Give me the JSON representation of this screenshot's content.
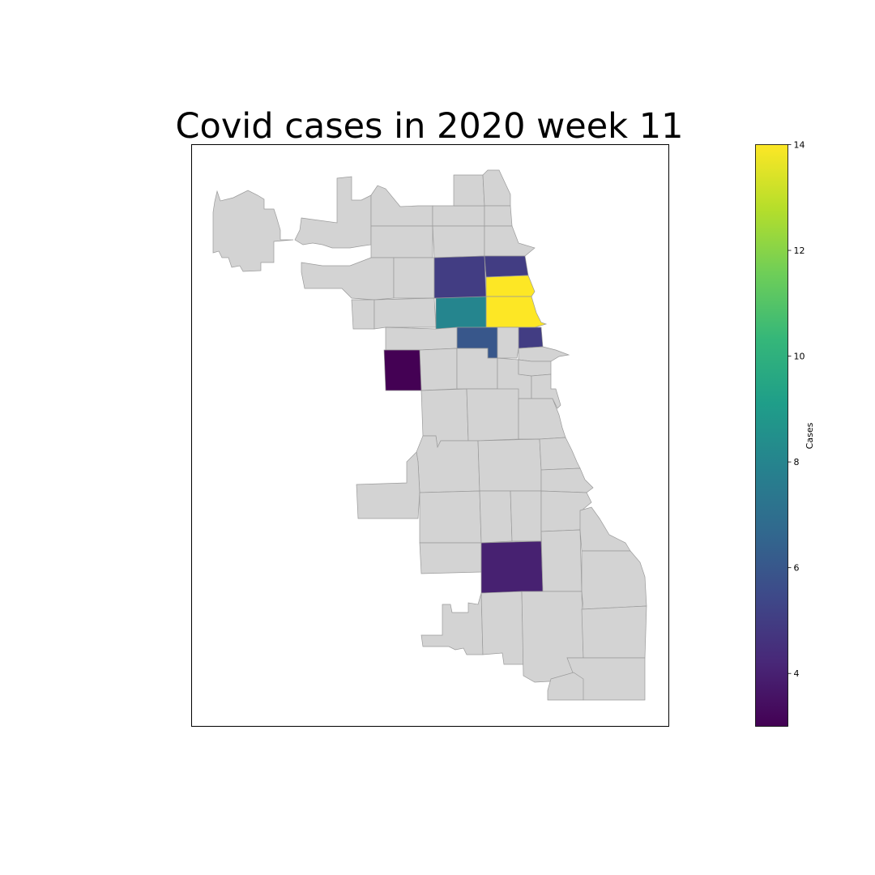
{
  "title": "Covid cases in 2020 week 11",
  "colorbar": {
    "label": "Cases",
    "min": 3,
    "max": 14,
    "ticks": [
      4,
      6,
      8,
      10,
      12,
      14
    ],
    "colormap": "viridis",
    "stops": [
      "#440154",
      "#482878",
      "#3e4989",
      "#31688e",
      "#26828e",
      "#1f9e89",
      "#35b779",
      "#6ece58",
      "#b5de2b",
      "#fde725"
    ]
  },
  "map": {
    "no_data_color": "#d3d3d3",
    "border_color": "#9a9a9a"
  },
  "chart_data": {
    "type": "choropleth",
    "title": "Covid cases in 2020 week 11",
    "colorbar_label": "Cases",
    "value_range": [
      3,
      14
    ],
    "regions_with_data": [
      {
        "id": "north-lakefront-a",
        "value": 14
      },
      {
        "id": "north-lakefront-b",
        "value": 14
      },
      {
        "id": "north-central",
        "value": 8
      },
      {
        "id": "north-inner-west",
        "value": 5
      },
      {
        "id": "north-inner-east",
        "value": 5
      },
      {
        "id": "near-north-lakefront",
        "value": 5
      },
      {
        "id": "near-north-central",
        "value": 6
      },
      {
        "id": "west-side",
        "value": 3
      },
      {
        "id": "south-central",
        "value": 4
      }
    ]
  }
}
